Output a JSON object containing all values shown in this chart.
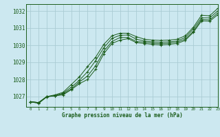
{
  "title": "Graphe pression niveau de la mer (hPa)",
  "bg_color": "#cce8f0",
  "grid_color": "#aaccd4",
  "line_color": "#1a5c1a",
  "xlim": [
    -0.5,
    23
  ],
  "ylim": [
    1026.4,
    1032.4
  ],
  "yticks": [
    1027,
    1028,
    1029,
    1030,
    1031,
    1032
  ],
  "xticks": [
    0,
    1,
    2,
    3,
    4,
    5,
    6,
    7,
    8,
    9,
    10,
    11,
    12,
    13,
    14,
    15,
    16,
    17,
    18,
    19,
    20,
    21,
    22,
    23
  ],
  "series": [
    [
      1026.7,
      1026.65,
      1027.0,
      1027.1,
      1027.25,
      1027.7,
      1028.15,
      1028.75,
      1029.3,
      1030.05,
      1030.55,
      1030.7,
      1030.7,
      1030.5,
      1030.35,
      1030.3,
      1030.28,
      1030.3,
      1030.35,
      1030.55,
      1031.05,
      1031.75,
      1031.72,
      1032.15
    ],
    [
      1026.7,
      1026.65,
      1027.0,
      1027.05,
      1027.2,
      1027.55,
      1027.95,
      1028.45,
      1029.1,
      1029.85,
      1030.4,
      1030.58,
      1030.6,
      1030.35,
      1030.25,
      1030.2,
      1030.18,
      1030.2,
      1030.25,
      1030.45,
      1030.95,
      1031.6,
      1031.6,
      1032.0
    ],
    [
      1026.7,
      1026.65,
      1027.0,
      1027.05,
      1027.15,
      1027.45,
      1027.85,
      1028.2,
      1028.8,
      1029.65,
      1030.22,
      1030.45,
      1030.45,
      1030.22,
      1030.18,
      1030.12,
      1030.1,
      1030.12,
      1030.18,
      1030.35,
      1030.82,
      1031.5,
      1031.48,
      1031.88
    ],
    [
      1026.7,
      1026.6,
      1026.98,
      1027.05,
      1027.1,
      1027.4,
      1027.75,
      1028.0,
      1028.6,
      1029.5,
      1030.1,
      1030.3,
      1030.38,
      1030.15,
      1030.1,
      1030.05,
      1030.02,
      1030.05,
      1030.1,
      1030.28,
      1030.75,
      1031.42,
      1031.4,
      1031.78
    ]
  ]
}
